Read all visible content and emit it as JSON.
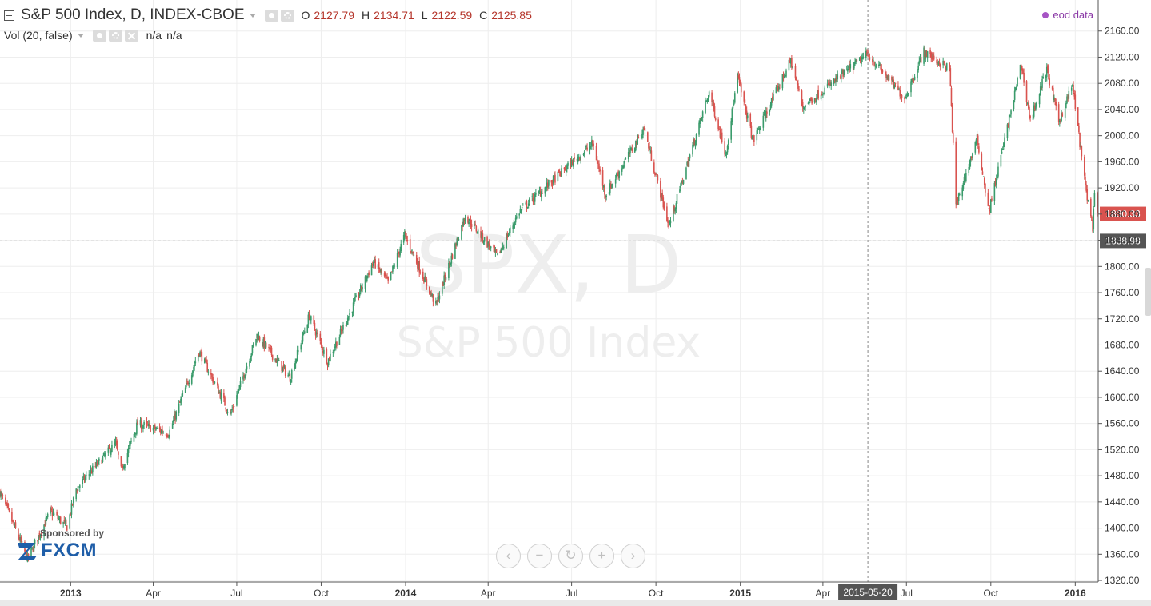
{
  "legend": {
    "symbol_title": "S&P 500 Index, D, INDEX-CBOE",
    "open_key": "O",
    "open_value": "2127.79",
    "high_key": "H",
    "high_value": "2134.71",
    "low_key": "L",
    "low_value": "2122.59",
    "close_key": "C",
    "close_value": "2125.85",
    "volume_label": "Vol (20, false)",
    "volume_value_1": "n/a",
    "volume_value_2": "n/a",
    "data_source": "eod data"
  },
  "watermark": {
    "symbol": "SPX, D",
    "name": "S&P 500 Index"
  },
  "sponsor": {
    "text": "Sponsored by",
    "brand": "FXCM"
  },
  "nav_buttons": [
    "‹",
    "−",
    "↻",
    "+",
    "›"
  ],
  "colors": {
    "up": "#3a9b6b",
    "down": "#d9534f",
    "last_price_badge": "#d9534f",
    "crosshair_badge": "#555555",
    "grid": "#eeeeee"
  },
  "chart_data": {
    "type": "candlestick",
    "title": "S&P 500 Index, D, INDEX-CBOE",
    "ylim": [
      1300,
      2170
    ],
    "y_ticks": [
      "1320.00",
      "1360.00",
      "1400.00",
      "1440.00",
      "1480.00",
      "1520.00",
      "1560.00",
      "1600.00",
      "1640.00",
      "1680.00",
      "1720.00",
      "1760.00",
      "1800.00",
      "1840.00",
      "1880.00",
      "1920.00",
      "1960.00",
      "2000.00",
      "2040.00",
      "2080.00",
      "2120.00",
      "2160.00"
    ],
    "y_tick_values": [
      1320,
      1360,
      1400,
      1440,
      1480,
      1520,
      1560,
      1600,
      1640,
      1680,
      1720,
      1760,
      1800,
      1840,
      1880,
      1920,
      1960,
      2000,
      2040,
      2080,
      2120,
      2160
    ],
    "x_range": [
      "2012-10-16",
      "2016-01-26"
    ],
    "x_ticks": [
      {
        "label": "2013",
        "date": "2013-01-01",
        "bold": true
      },
      {
        "label": "Apr",
        "date": "2013-04-01",
        "bold": false
      },
      {
        "label": "Jul",
        "date": "2013-07-01",
        "bold": false
      },
      {
        "label": "Oct",
        "date": "2013-10-01",
        "bold": false
      },
      {
        "label": "2014",
        "date": "2014-01-01",
        "bold": true
      },
      {
        "label": "Apr",
        "date": "2014-04-01",
        "bold": false
      },
      {
        "label": "Jul",
        "date": "2014-07-01",
        "bold": false
      },
      {
        "label": "Oct",
        "date": "2014-10-01",
        "bold": false
      },
      {
        "label": "2015",
        "date": "2015-01-01",
        "bold": true
      },
      {
        "label": "Apr",
        "date": "2015-04-01",
        "bold": false
      },
      {
        "label": "Jul",
        "date": "2015-07-01",
        "bold": false
      },
      {
        "label": "Oct",
        "date": "2015-10-01",
        "bold": false
      },
      {
        "label": "2016",
        "date": "2016-01-01",
        "bold": true
      }
    ],
    "last_price": {
      "value": 1880.33,
      "label": "1880.33"
    },
    "crosshair": {
      "price": 1838.98,
      "price_label": "1838.98",
      "date": "2015-05-20",
      "date_label": "2015-05-20"
    },
    "path_anchors": [
      [
        "2012-10-16",
        1455
      ],
      [
        "2012-11-15",
        1353
      ],
      [
        "2012-12-10",
        1425
      ],
      [
        "2012-12-28",
        1402
      ],
      [
        "2013-01-07",
        1460
      ],
      [
        "2013-02-19",
        1530
      ],
      [
        "2013-02-25",
        1488
      ],
      [
        "2013-03-15",
        1560
      ],
      [
        "2013-04-18",
        1545
      ],
      [
        "2013-05-21",
        1670
      ],
      [
        "2013-06-24",
        1573
      ],
      [
        "2013-07-23",
        1695
      ],
      [
        "2013-08-28",
        1630
      ],
      [
        "2013-09-18",
        1725
      ],
      [
        "2013-10-08",
        1655
      ],
      [
        "2013-11-27",
        1807
      ],
      [
        "2013-12-13",
        1775
      ],
      [
        "2013-12-31",
        1848
      ],
      [
        "2014-02-03",
        1741
      ],
      [
        "2014-03-07",
        1878
      ],
      [
        "2014-04-11",
        1815
      ],
      [
        "2014-05-05",
        1884
      ],
      [
        "2014-07-24",
        1988
      ],
      [
        "2014-08-07",
        1909
      ],
      [
        "2014-09-18",
        2011
      ],
      [
        "2014-10-15",
        1862
      ],
      [
        "2014-11-28",
        2067
      ],
      [
        "2014-12-16",
        1972
      ],
      [
        "2014-12-29",
        2090
      ],
      [
        "2015-01-15",
        1992
      ],
      [
        "2015-02-25",
        2115
      ],
      [
        "2015-03-10",
        2044
      ],
      [
        "2015-05-20",
        2125
      ],
      [
        "2015-06-29",
        2057
      ],
      [
        "2015-07-20",
        2128
      ],
      [
        "2015-08-17",
        2102
      ],
      [
        "2015-08-24",
        1893
      ],
      [
        "2015-09-16",
        1995
      ],
      [
        "2015-09-29",
        1884
      ],
      [
        "2015-11-03",
        2109
      ],
      [
        "2015-11-13",
        2023
      ],
      [
        "2015-12-01",
        2102
      ],
      [
        "2015-12-14",
        2021
      ],
      [
        "2015-12-29",
        2078
      ],
      [
        "2016-01-12",
        1923
      ],
      [
        "2016-01-20",
        1860
      ],
      [
        "2016-01-22",
        1906
      ],
      [
        "2016-01-25",
        1877
      ]
    ]
  }
}
